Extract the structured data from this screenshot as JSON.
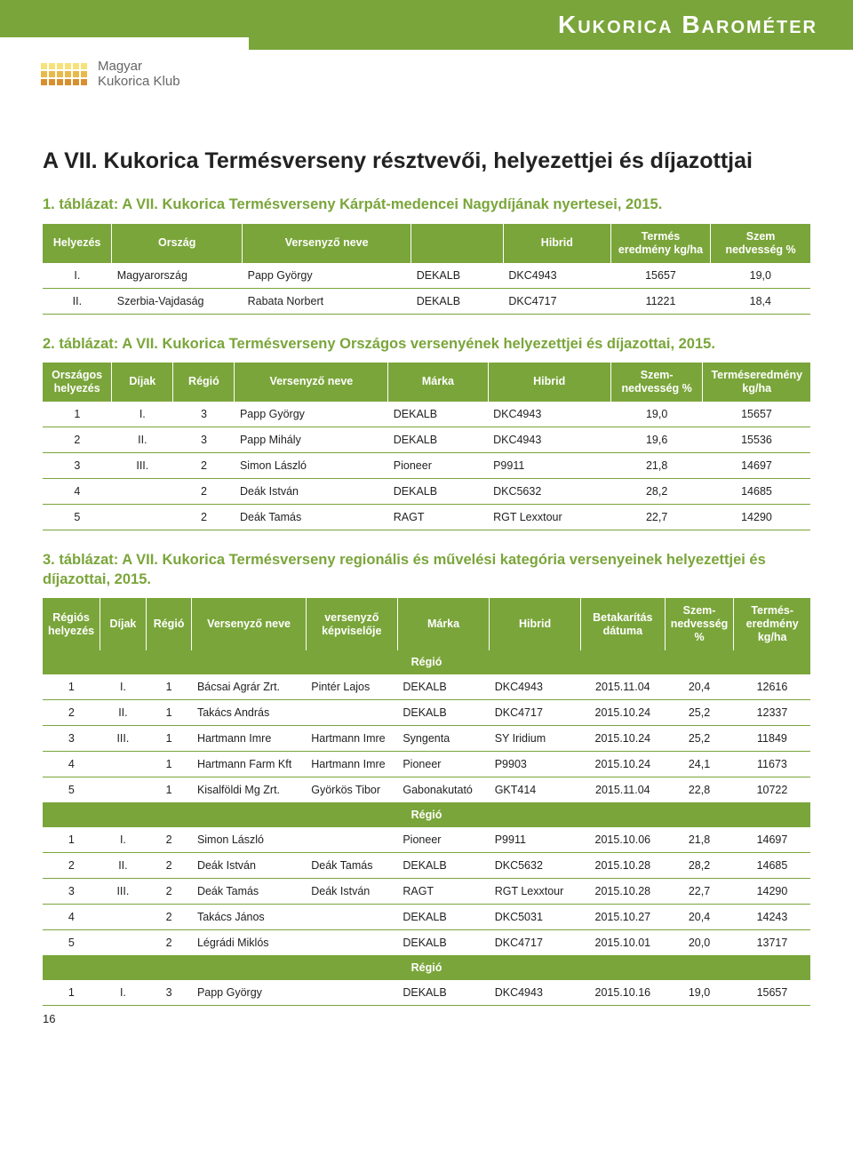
{
  "header": {
    "title": "Kukorica Barométer",
    "logo_line1": "Magyar",
    "logo_line2": "Kukorica Klub",
    "logo_colors": [
      "#f6e27a",
      "#f6e27a",
      "#f6e27a",
      "#f6e27a",
      "#f6e27a",
      "#f6e27a",
      "#e9b949",
      "#e9b949",
      "#e9b949",
      "#e9b949",
      "#e9b949",
      "#e9b949",
      "#d98f2e",
      "#d98f2e",
      "#d98f2e",
      "#d98f2e",
      "#d98f2e",
      "#d98f2e"
    ]
  },
  "page_title": "A VII. Kukorica Termésverseny résztvevői, helyezettjei és díjazottjai",
  "table1": {
    "heading": "1. táblázat: A VII. Kukorica Termésverseny Kárpát-medencei Nagydíjának nyertesei, 2015.",
    "columns": [
      "Helyezés",
      "Ország",
      "Versenyző neve",
      "",
      "Hibrid",
      "Termés eredmény kg/ha",
      "Szem nedvesség %"
    ],
    "rows": [
      [
        "I.",
        "Magyarország",
        "Papp György",
        "DEKALB",
        "DKC4943",
        "15657",
        "19,0"
      ],
      [
        "II.",
        "Szerbia-Vajdaság",
        "Rabata Norbert",
        "DEKALB",
        "DKC4717",
        "11221",
        "18,4"
      ]
    ]
  },
  "table2": {
    "heading": "2. táblázat: A VII. Kukorica Termésverseny Országos versenyének helyezettjei és díjazottai, 2015.",
    "columns": [
      "Országos helyezés",
      "Díjak",
      "Régió",
      "Versenyző neve",
      "Márka",
      "Hibrid",
      "Szem-nedvesség %",
      "Terméseredmény kg/ha"
    ],
    "rows": [
      [
        "1",
        "I.",
        "3",
        "Papp György",
        "DEKALB",
        "DKC4943",
        "19,0",
        "15657"
      ],
      [
        "2",
        "II.",
        "3",
        "Papp Mihály",
        "DEKALB",
        "DKC4943",
        "19,6",
        "15536"
      ],
      [
        "3",
        "III.",
        "2",
        "Simon László",
        "Pioneer",
        "P9911",
        "21,8",
        "14697"
      ],
      [
        "4",
        "",
        "2",
        "Deák István",
        "DEKALB",
        "DKC5632",
        "28,2",
        "14685"
      ],
      [
        "5",
        "",
        "2",
        "Deák Tamás",
        "RAGT",
        "RGT Lexxtour",
        "22,7",
        "14290"
      ]
    ]
  },
  "table3": {
    "heading": "3. táblázat: A VII. Kukorica Termésverseny  regionális és művelési kategória versenyeinek helyezettjei és díjazottai, 2015.",
    "columns": [
      "Régiós helyezés",
      "Díjak",
      "Régió",
      "Versenyző neve",
      "versenyző képviselője",
      "Márka",
      "Hibrid",
      "Betakarítás dátuma",
      "Szem-nedvesség %",
      "Termés-eredmény kg/ha"
    ],
    "section_label": "Régió",
    "sections": [
      {
        "rows": [
          [
            "1",
            "I.",
            "1",
            "Bácsai Agrár Zrt.",
            "Pintér Lajos",
            "DEKALB",
            "DKC4943",
            "2015.11.04",
            "20,4",
            "12616"
          ],
          [
            "2",
            "II.",
            "1",
            "Takács András",
            "",
            "DEKALB",
            "DKC4717",
            "2015.10.24",
            "25,2",
            "12337"
          ],
          [
            "3",
            "III.",
            "1",
            "Hartmann Imre",
            "Hartmann Imre",
            "Syngenta",
            "SY Iridium",
            "2015.10.24",
            "25,2",
            "11849"
          ],
          [
            "4",
            "",
            "1",
            "Hartmann Farm Kft",
            "Hartmann Imre",
            "Pioneer",
            "P9903",
            "2015.10.24",
            "24,1",
            "11673"
          ],
          [
            "5",
            "",
            "1",
            "Kisalföldi Mg Zrt.",
            "Györkös Tibor",
            "Gabonakutató",
            "GKT414",
            "2015.11.04",
            "22,8",
            "10722"
          ]
        ]
      },
      {
        "rows": [
          [
            "1",
            "I.",
            "2",
            "Simon László",
            "",
            "Pioneer",
            "P9911",
            "2015.10.06",
            "21,8",
            "14697"
          ],
          [
            "2",
            "II.",
            "2",
            "Deák István",
            "Deák Tamás",
            "DEKALB",
            "DKC5632",
            "2015.10.28",
            "28,2",
            "14685"
          ],
          [
            "3",
            "III.",
            "2",
            "Deák Tamás",
            "Deák István",
            "RAGT",
            "RGT Lexxtour",
            "2015.10.28",
            "22,7",
            "14290"
          ],
          [
            "4",
            "",
            "2",
            "Takács János",
            "",
            "DEKALB",
            "DKC5031",
            "2015.10.27",
            "20,4",
            "14243"
          ],
          [
            "5",
            "",
            "2",
            "Légrádi Miklós",
            "",
            "DEKALB",
            "DKC4717",
            "2015.10.01",
            "20,0",
            "13717"
          ]
        ]
      },
      {
        "rows": [
          [
            "1",
            "I.",
            "3",
            "Papp György",
            "",
            "DEKALB",
            "DKC4943",
            "2015.10.16",
            "19,0",
            "15657"
          ]
        ]
      }
    ]
  },
  "page_number": "16",
  "colors": {
    "accent": "#7aa53a",
    "text": "#222222",
    "white": "#ffffff"
  }
}
